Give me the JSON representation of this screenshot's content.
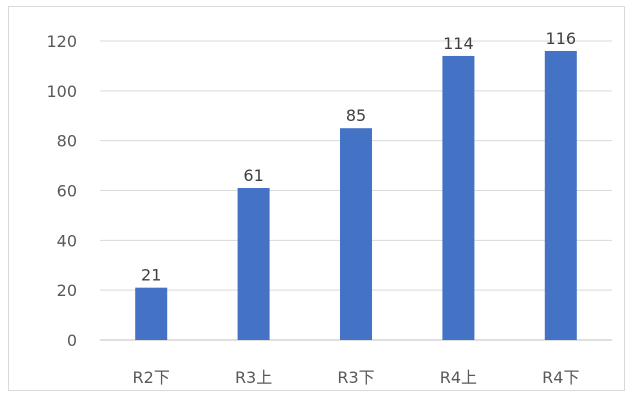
{
  "chart_data": {
    "type": "bar",
    "categories": [
      "R2下",
      "R3上",
      "R3下",
      "R4上",
      "R4下"
    ],
    "values": [
      21,
      61,
      85,
      114,
      116
    ],
    "data_labels": [
      "21",
      "61",
      "85",
      "114",
      "116"
    ],
    "yticks": [
      0,
      20,
      40,
      60,
      80,
      100,
      120
    ],
    "ytick_labels": [
      "0",
      "20",
      "40",
      "60",
      "80",
      "100",
      "120"
    ],
    "ylim": [
      0,
      120
    ],
    "grid": true,
    "legend": "none",
    "colors": {
      "bar": "#4472C4",
      "grid": "#d9d9d9",
      "axis": "#bfbfbf",
      "border": "#d9d9d9"
    }
  }
}
